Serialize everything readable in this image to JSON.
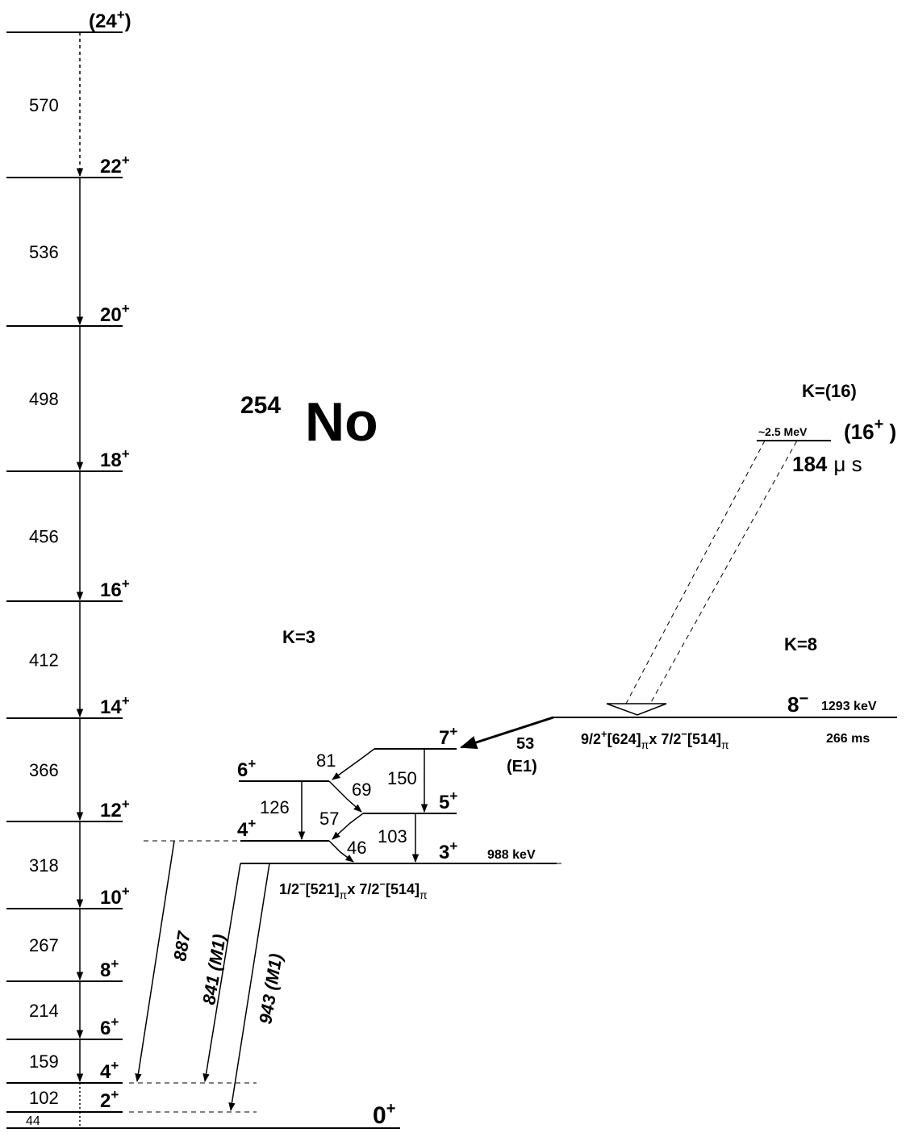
{
  "title": {
    "mass": "254",
    "symbol": "No"
  },
  "gsb": {
    "levels": [
      {
        "spin": "0",
        "parity": "+"
      },
      {
        "spin": "2",
        "parity": "+"
      },
      {
        "spin": "4",
        "parity": "+"
      },
      {
        "spin": "6",
        "parity": "+"
      },
      {
        "spin": "8",
        "parity": "+"
      },
      {
        "spin": "10",
        "parity": "+"
      },
      {
        "spin": "12",
        "parity": "+"
      },
      {
        "spin": "14",
        "parity": "+"
      },
      {
        "spin": "16",
        "parity": "+"
      },
      {
        "spin": "18",
        "parity": "+"
      },
      {
        "spin": "20",
        "parity": "+"
      },
      {
        "spin": "22",
        "parity": "+"
      },
      {
        "spin": "(24",
        "parity": "+",
        "close": ")"
      }
    ],
    "transitions": [
      "44",
      "102",
      "159",
      "214",
      "267",
      "318",
      "366",
      "412",
      "456",
      "498",
      "536",
      "570"
    ]
  },
  "k3": {
    "label": "K=3",
    "levels": [
      {
        "spin": "3",
        "parity": "+"
      },
      {
        "spin": "4",
        "parity": "+"
      },
      {
        "spin": "5",
        "parity": "+"
      },
      {
        "spin": "6",
        "parity": "+"
      },
      {
        "spin": "7",
        "parity": "+"
      }
    ],
    "energy": "988 keV",
    "config": {
      "a": "1/2",
      "b": "[521]",
      "c": "x 7/2",
      "d": "[514]"
    },
    "transitions": [
      "46",
      "57",
      "69",
      "81",
      "103",
      "126",
      "150"
    ],
    "decays": [
      "887",
      "841 (M1)",
      "943 (M1)"
    ]
  },
  "k8": {
    "label": "K=8",
    "spin": "8",
    "parity": "−",
    "energy": "1293 keV",
    "halflife": "266 ms",
    "config": {
      "a": "9/2",
      "b": "[624]",
      "c": "x 7/2",
      "d": "[514]"
    },
    "decay": {
      "energy": "53",
      "mult": "(E1)"
    }
  },
  "k16": {
    "label": "K=(16)",
    "energy": "~2.5 MeV",
    "spin": "(16",
    "parity": "+",
    "close": " )",
    "halflife_value": "184",
    "halflife_unit": "μ s"
  },
  "config_sub": "π",
  "config_minus": "−",
  "config_plus": "+"
}
